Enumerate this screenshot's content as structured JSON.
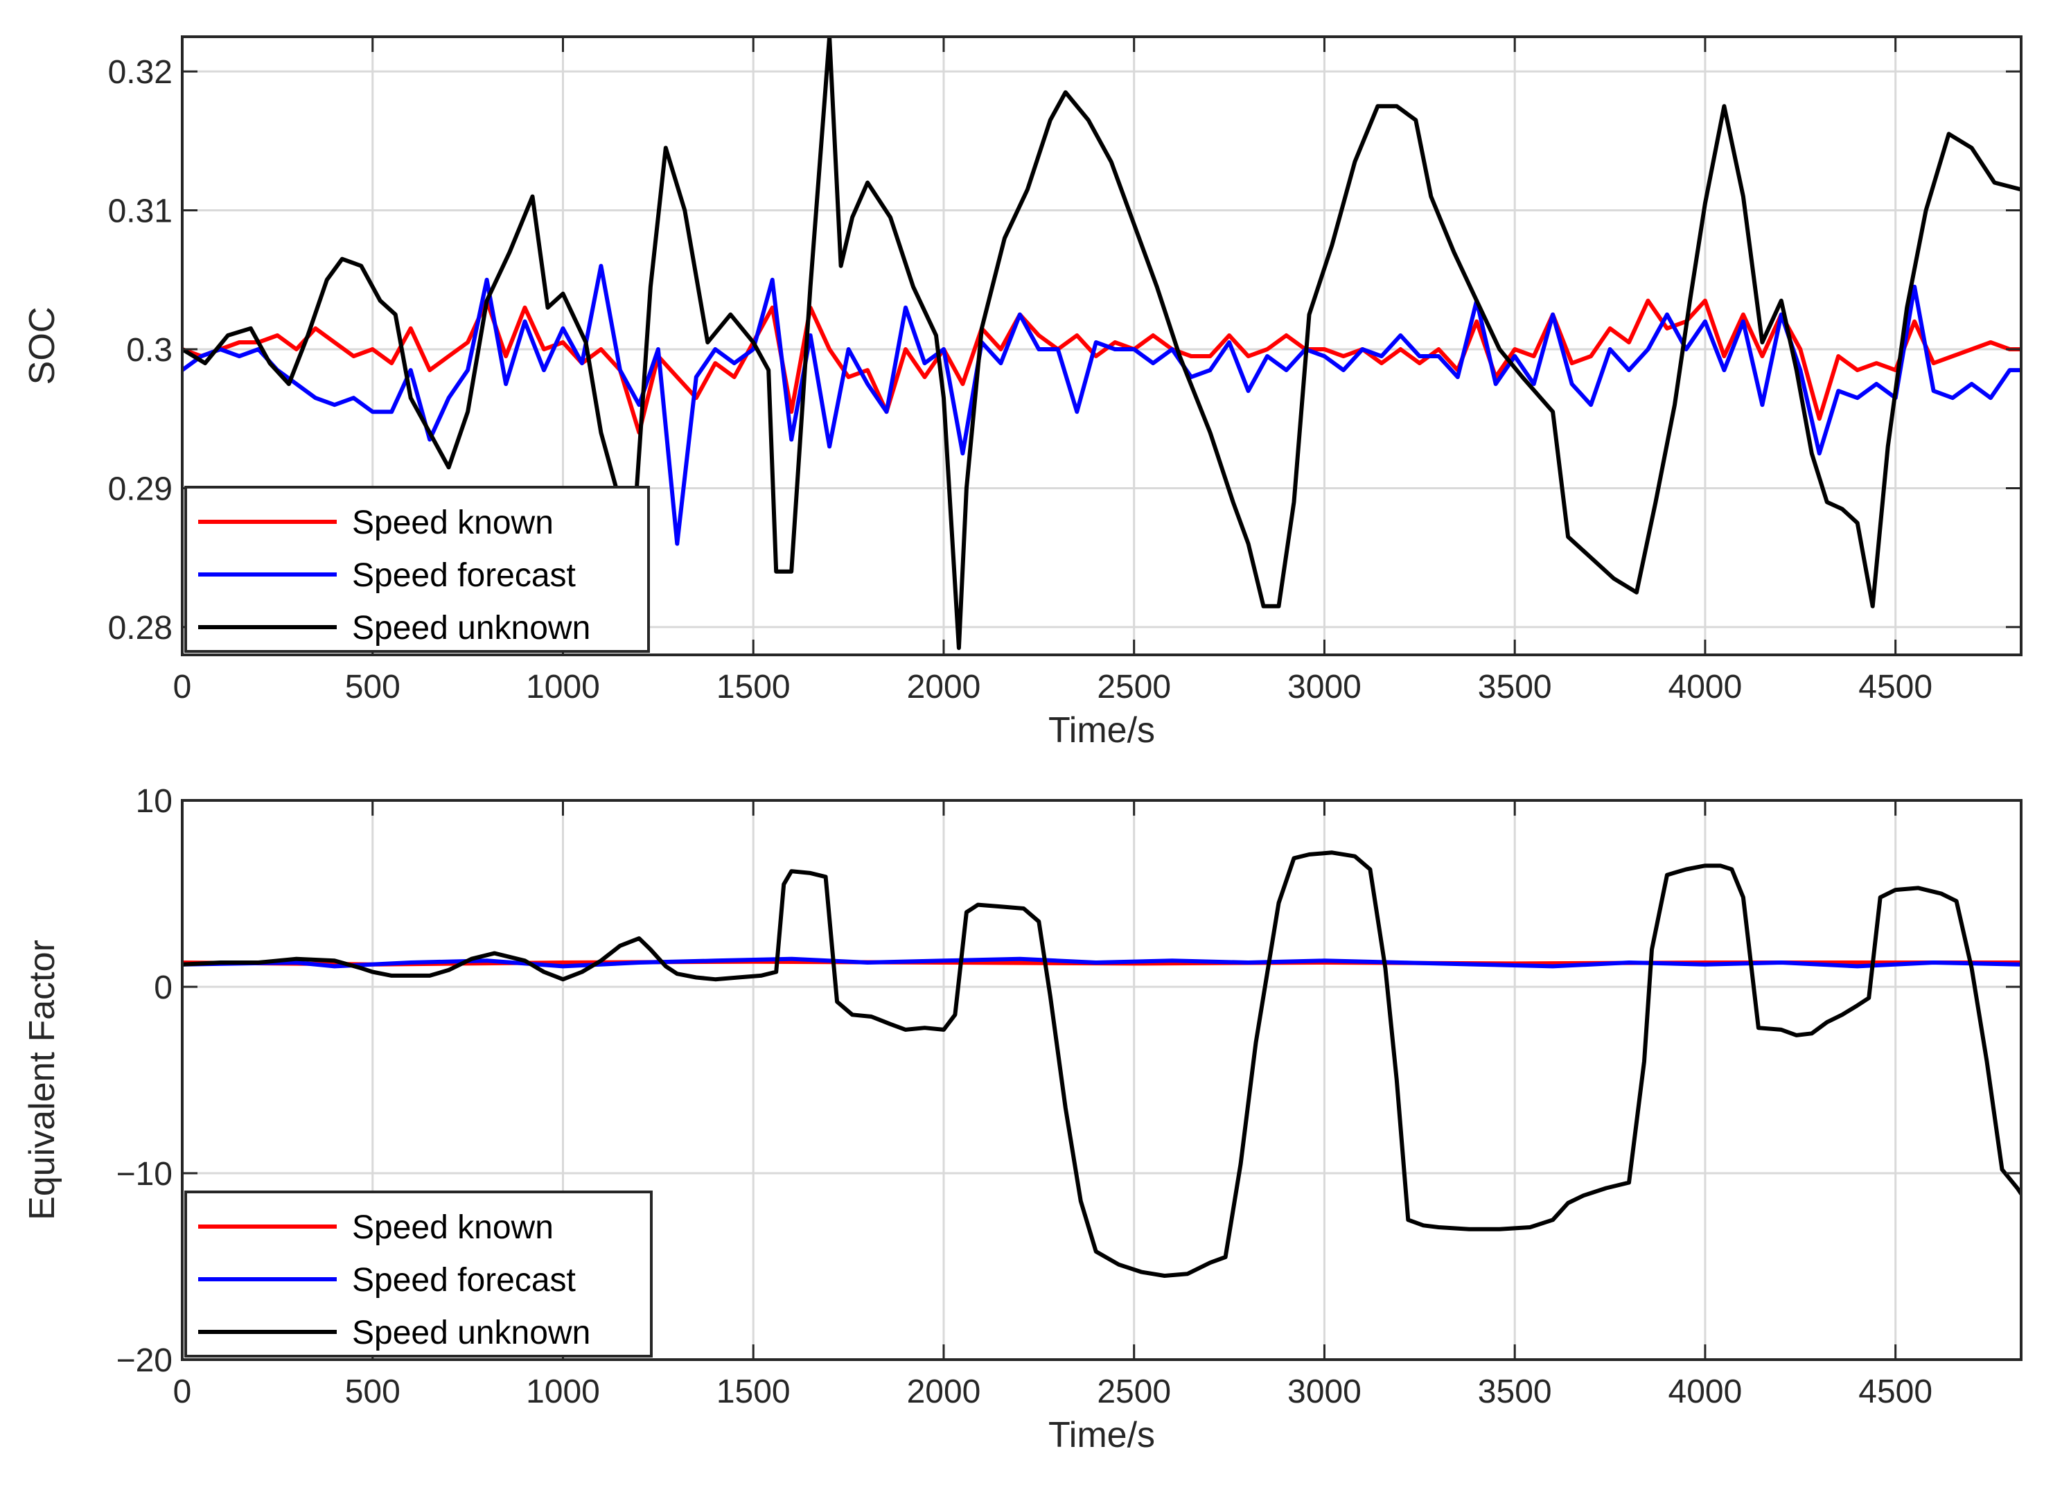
{
  "chart_data": [
    {
      "type": "line",
      "xlabel": "Time/s",
      "ylabel": "SOC",
      "xlim": [
        0,
        4830
      ],
      "ylim": [
        0.278,
        0.3225
      ],
      "xticks": [
        0,
        500,
        1000,
        1500,
        2000,
        2500,
        3000,
        3500,
        4000,
        4500
      ],
      "yticks": [
        0.28,
        0.29,
        0.3,
        0.31,
        0.32
      ],
      "xtick_labels": [
        "0",
        "500",
        "1000",
        "1500",
        "2000",
        "2500",
        "3000",
        "3500",
        "4000",
        "4500"
      ],
      "ytick_labels": [
        "0.28",
        "0.29",
        "0.3",
        "0.31",
        "0.32"
      ],
      "grid": true,
      "legend_position": "bottom-left",
      "legend": [
        "Speed known",
        "Speed forecast",
        "Speed unknown"
      ],
      "series": [
        {
          "name": "Speed known",
          "color": "#ff0000",
          "x": [
            0,
            50,
            100,
            150,
            200,
            250,
            300,
            350,
            400,
            450,
            500,
            550,
            600,
            650,
            700,
            750,
            800,
            850,
            900,
            950,
            1000,
            1050,
            1100,
            1150,
            1200,
            1250,
            1300,
            1350,
            1400,
            1450,
            1500,
            1550,
            1600,
            1650,
            1700,
            1750,
            1800,
            1850,
            1900,
            1950,
            2000,
            2050,
            2100,
            2150,
            2200,
            2250,
            2300,
            2350,
            2400,
            2450,
            2500,
            2550,
            2600,
            2650,
            2700,
            2750,
            2800,
            2850,
            2900,
            2950,
            3000,
            3050,
            3100,
            3150,
            3200,
            3250,
            3300,
            3350,
            3400,
            3450,
            3500,
            3550,
            3600,
            3650,
            3700,
            3750,
            3800,
            3850,
            3900,
            3950,
            4000,
            4050,
            4100,
            4150,
            4200,
            4250,
            4300,
            4350,
            4400,
            4450,
            4500,
            4550,
            4600,
            4650,
            4700,
            4750,
            4800,
            4830
          ],
          "y": [
            0.3,
            0.2995,
            0.3,
            0.3005,
            0.3005,
            0.301,
            0.3,
            0.3015,
            0.3005,
            0.2995,
            0.3,
            0.299,
            0.3015,
            0.2985,
            0.2995,
            0.3005,
            0.3035,
            0.2995,
            0.303,
            0.3,
            0.3005,
            0.299,
            0.3,
            0.2985,
            0.294,
            0.2995,
            0.298,
            0.2965,
            0.299,
            0.298,
            0.3005,
            0.303,
            0.2955,
            0.303,
            0.3,
            0.298,
            0.2985,
            0.2955,
            0.3,
            0.298,
            0.3,
            0.2975,
            0.3015,
            0.3,
            0.3025,
            0.301,
            0.3,
            0.301,
            0.2995,
            0.3005,
            0.3,
            0.301,
            0.3,
            0.2995,
            0.2995,
            0.301,
            0.2995,
            0.3,
            0.301,
            0.3,
            0.3,
            0.2995,
            0.3,
            0.299,
            0.3,
            0.299,
            0.3,
            0.2985,
            0.302,
            0.298,
            0.3,
            0.2995,
            0.3025,
            0.299,
            0.2995,
            0.3015,
            0.3005,
            0.3035,
            0.3015,
            0.302,
            0.3035,
            0.2995,
            0.3025,
            0.2995,
            0.3025,
            0.3,
            0.295,
            0.2995,
            0.2985,
            0.299,
            0.2985,
            0.302,
            0.299,
            0.2995,
            0.3,
            0.3005,
            0.3,
            0.3
          ]
        },
        {
          "name": "Speed forecast",
          "color": "#0000ff",
          "x": [
            0,
            50,
            100,
            150,
            200,
            250,
            300,
            350,
            400,
            450,
            500,
            550,
            600,
            650,
            700,
            750,
            800,
            850,
            900,
            950,
            1000,
            1050,
            1100,
            1150,
            1200,
            1250,
            1300,
            1350,
            1400,
            1450,
            1500,
            1550,
            1600,
            1650,
            1700,
            1750,
            1800,
            1850,
            1900,
            1950,
            2000,
            2050,
            2100,
            2150,
            2200,
            2250,
            2300,
            2350,
            2400,
            2450,
            2500,
            2550,
            2600,
            2650,
            2700,
            2750,
            2800,
            2850,
            2900,
            2950,
            3000,
            3050,
            3100,
            3150,
            3200,
            3250,
            3300,
            3350,
            3400,
            3450,
            3500,
            3550,
            3600,
            3650,
            3700,
            3750,
            3800,
            3850,
            3900,
            3950,
            4000,
            4050,
            4100,
            4150,
            4200,
            4250,
            4300,
            4350,
            4400,
            4450,
            4500,
            4550,
            4600,
            4650,
            4700,
            4750,
            4800,
            4830
          ],
          "y": [
            0.2985,
            0.2995,
            0.3,
            0.2995,
            0.3,
            0.2985,
            0.2975,
            0.2965,
            0.296,
            0.2965,
            0.2955,
            0.2955,
            0.2985,
            0.2935,
            0.2965,
            0.2985,
            0.305,
            0.2975,
            0.302,
            0.2985,
            0.3015,
            0.299,
            0.306,
            0.2985,
            0.296,
            0.3,
            0.286,
            0.298,
            0.3,
            0.299,
            0.3,
            0.305,
            0.2935,
            0.301,
            0.293,
            0.3,
            0.2975,
            0.2955,
            0.303,
            0.299,
            0.3,
            0.2925,
            0.3005,
            0.299,
            0.3025,
            0.3,
            0.3,
            0.2955,
            0.3005,
            0.3,
            0.3,
            0.299,
            0.3,
            0.298,
            0.2985,
            0.3005,
            0.297,
            0.2995,
            0.2985,
            0.3,
            0.2995,
            0.2985,
            0.3,
            0.2995,
            0.301,
            0.2995,
            0.2995,
            0.298,
            0.3035,
            0.2975,
            0.2995,
            0.2975,
            0.3025,
            0.2975,
            0.296,
            0.3,
            0.2985,
            0.3,
            0.3025,
            0.3,
            0.302,
            0.2985,
            0.302,
            0.296,
            0.3025,
            0.2985,
            0.2925,
            0.297,
            0.2965,
            0.2975,
            0.2965,
            0.3045,
            0.297,
            0.2965,
            0.2975,
            0.2965,
            0.2985,
            0.2985
          ]
        },
        {
          "name": "Speed unknown",
          "color": "#000000",
          "x": [
            0,
            60,
            120,
            180,
            230,
            280,
            330,
            380,
            420,
            470,
            520,
            560,
            600,
            640,
            700,
            750,
            800,
            860,
            920,
            960,
            1000,
            1060,
            1100,
            1140,
            1190,
            1230,
            1270,
            1320,
            1380,
            1440,
            1500,
            1540,
            1560,
            1600,
            1650,
            1700,
            1730,
            1760,
            1800,
            1860,
            1920,
            1980,
            2000,
            2040,
            2060,
            2100,
            2160,
            2220,
            2280,
            2320,
            2380,
            2440,
            2500,
            2560,
            2620,
            2700,
            2760,
            2800,
            2840,
            2880,
            2920,
            2960,
            3020,
            3080,
            3140,
            3190,
            3240,
            3280,
            3340,
            3400,
            3460,
            3520,
            3600,
            3640,
            3700,
            3760,
            3820,
            3870,
            3920,
            3960,
            4000,
            4050,
            4100,
            4150,
            4200,
            4240,
            4280,
            4320,
            4360,
            4400,
            4440,
            4480,
            4530,
            4580,
            4640,
            4700,
            4760,
            4830
          ],
          "y": [
            0.3,
            0.299,
            0.301,
            0.3015,
            0.299,
            0.2975,
            0.301,
            0.305,
            0.3065,
            0.306,
            0.3035,
            0.3025,
            0.2965,
            0.2945,
            0.2915,
            0.2955,
            0.3035,
            0.307,
            0.311,
            0.303,
            0.304,
            0.3005,
            0.294,
            0.29,
            0.2885,
            0.3045,
            0.3145,
            0.31,
            0.3005,
            0.3025,
            0.3005,
            0.2985,
            0.284,
            0.284,
            0.3045,
            0.3225,
            0.306,
            0.3095,
            0.312,
            0.3095,
            0.3045,
            0.301,
            0.2965,
            0.2785,
            0.29,
            0.3015,
            0.308,
            0.3115,
            0.3165,
            0.3185,
            0.3165,
            0.3135,
            0.309,
            0.3045,
            0.2995,
            0.294,
            0.289,
            0.286,
            0.2815,
            0.2815,
            0.289,
            0.3025,
            0.3075,
            0.3135,
            0.3175,
            0.3175,
            0.3165,
            0.311,
            0.307,
            0.3035,
            0.3,
            0.298,
            0.2955,
            0.2865,
            0.285,
            0.2835,
            0.2825,
            0.289,
            0.296,
            0.3035,
            0.3105,
            0.3175,
            0.311,
            0.3005,
            0.3035,
            0.2985,
            0.2925,
            0.289,
            0.2885,
            0.2875,
            0.2815,
            0.293,
            0.303,
            0.31,
            0.3155,
            0.3145,
            0.312,
            0.3115
          ]
        }
      ]
    },
    {
      "type": "line",
      "xlabel": "Time/s",
      "ylabel": "Equivalent Factor",
      "xlim": [
        0,
        4830
      ],
      "ylim": [
        -20,
        10
      ],
      "xticks": [
        0,
        500,
        1000,
        1500,
        2000,
        2500,
        3000,
        3500,
        4000,
        4500
      ],
      "yticks": [
        -20,
        -10,
        0,
        10
      ],
      "xtick_labels": [
        "0",
        "500",
        "1000",
        "1500",
        "2000",
        "2500",
        "3000",
        "3500",
        "4000",
        "4500"
      ],
      "ytick_labels": [
        "−20",
        "−10",
        "0",
        "10"
      ],
      "grid": true,
      "legend_position": "bottom-left",
      "legend": [
        "Speed known",
        "Speed forecast",
        "Speed unknown"
      ],
      "series": [
        {
          "name": "Speed known",
          "color": "#ff0000",
          "x": [
            0,
            500,
            1000,
            1500,
            2000,
            2500,
            3000,
            3500,
            4000,
            4500,
            4830
          ],
          "y": [
            1.3,
            1.2,
            1.3,
            1.35,
            1.3,
            1.25,
            1.3,
            1.25,
            1.3,
            1.3,
            1.3
          ]
        },
        {
          "name": "Speed forecast",
          "color": "#0000ff",
          "x": [
            0,
            300,
            400,
            600,
            800,
            1000,
            1200,
            1400,
            1600,
            1800,
            2000,
            2200,
            2400,
            2600,
            2800,
            3000,
            3200,
            3400,
            3600,
            3800,
            4000,
            4200,
            4400,
            4600,
            4830
          ],
          "y": [
            1.2,
            1.3,
            1.1,
            1.3,
            1.4,
            1.1,
            1.3,
            1.4,
            1.5,
            1.3,
            1.4,
            1.5,
            1.3,
            1.4,
            1.3,
            1.4,
            1.3,
            1.2,
            1.1,
            1.3,
            1.2,
            1.3,
            1.1,
            1.3,
            1.2
          ]
        },
        {
          "name": "Speed unknown",
          "color": "#000000",
          "x": [
            0,
            100,
            200,
            300,
            400,
            470,
            500,
            550,
            650,
            700,
            760,
            820,
            900,
            950,
            1000,
            1050,
            1100,
            1150,
            1200,
            1230,
            1270,
            1300,
            1350,
            1400,
            1460,
            1520,
            1560,
            1580,
            1600,
            1650,
            1690,
            1720,
            1760,
            1810,
            1860,
            1900,
            1950,
            2000,
            2030,
            2060,
            2090,
            2150,
            2210,
            2250,
            2280,
            2320,
            2360,
            2400,
            2460,
            2520,
            2580,
            2640,
            2700,
            2740,
            2780,
            2820,
            2880,
            2920,
            2960,
            3020,
            3080,
            3120,
            3160,
            3190,
            3220,
            3260,
            3300,
            3380,
            3460,
            3540,
            3600,
            3640,
            3680,
            3740,
            3800,
            3840,
            3860,
            3900,
            3950,
            4000,
            4040,
            4070,
            4100,
            4140,
            4200,
            4240,
            4280,
            4320,
            4360,
            4400,
            4430,
            4460,
            4500,
            4560,
            4620,
            4660,
            4700,
            4740,
            4780,
            4820,
            4830
          ],
          "y": [
            1.2,
            1.3,
            1.3,
            1.5,
            1.4,
            1.0,
            0.8,
            0.6,
            0.6,
            0.9,
            1.5,
            1.8,
            1.4,
            0.8,
            0.4,
            0.8,
            1.4,
            2.2,
            2.6,
            2.0,
            1.1,
            0.7,
            0.5,
            0.4,
            0.5,
            0.6,
            0.8,
            5.5,
            6.2,
            6.1,
            5.9,
            -0.8,
            -1.5,
            -1.6,
            -2.0,
            -2.3,
            -2.2,
            -2.3,
            -1.5,
            4.0,
            4.4,
            4.3,
            4.2,
            3.5,
            -0.5,
            -6.5,
            -11.5,
            -14.2,
            -14.9,
            -15.3,
            -15.5,
            -15.4,
            -14.8,
            -14.5,
            -9.5,
            -3.0,
            4.5,
            6.9,
            7.1,
            7.2,
            7.0,
            6.3,
            1.0,
            -5.0,
            -12.5,
            -12.8,
            -12.9,
            -13.0,
            -13.0,
            -12.9,
            -12.5,
            -11.6,
            -11.2,
            -10.8,
            -10.5,
            -4.0,
            2.0,
            6.0,
            6.3,
            6.5,
            6.5,
            6.3,
            4.8,
            -2.2,
            -2.3,
            -2.6,
            -2.5,
            -1.9,
            -1.5,
            -1.0,
            -0.6,
            4.8,
            5.2,
            5.3,
            5.0,
            4.6,
            1.0,
            -4.0,
            -9.8,
            -10.8,
            -11.1
          ]
        }
      ]
    }
  ]
}
